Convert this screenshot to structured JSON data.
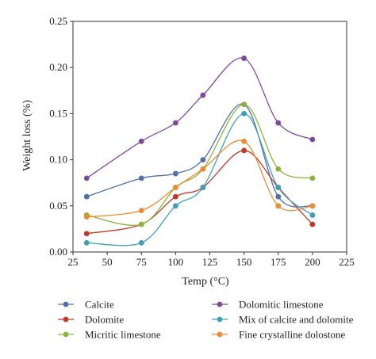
{
  "chart_data": {
    "type": "line",
    "xlabel": "Temp (°C)",
    "ylabel": "Weight loss (%)",
    "xlim": [
      25,
      225
    ],
    "ylim": [
      0,
      0.25
    ],
    "xticks": [
      25,
      50,
      75,
      100,
      125,
      150,
      175,
      200,
      225
    ],
    "yticks": [
      0.0,
      0.05,
      0.1,
      0.15,
      0.2,
      0.25
    ],
    "xtick_labels": [
      "25",
      "50",
      "75",
      "100",
      "125",
      "150",
      "175",
      "200",
      "225"
    ],
    "ytick_labels": [
      "0.00",
      "0.05",
      "0.10",
      "0.15",
      "0.20",
      "0.25"
    ],
    "grid": false,
    "legend_position": "bottom",
    "x": [
      35,
      75,
      100,
      120,
      150,
      175,
      200
    ],
    "series": [
      {
        "name": "Calcite",
        "color": "#4f6fa8",
        "values": [
          0.06,
          0.08,
          0.085,
          0.1,
          0.16,
          0.06,
          0.05
        ]
      },
      {
        "name": "Dolomitic limestone",
        "color": "#7b4a9e",
        "values": [
          0.08,
          0.12,
          0.14,
          0.17,
          0.21,
          0.14,
          0.122
        ]
      },
      {
        "name": "Dolomite",
        "color": "#c0392b",
        "values": [
          0.02,
          0.03,
          0.06,
          0.07,
          0.11,
          0.07,
          0.03
        ]
      },
      {
        "name": "Mix of calcite and dolomite",
        "color": "#3f9fb5",
        "values": [
          0.01,
          0.01,
          0.05,
          0.07,
          0.15,
          0.07,
          0.04
        ]
      },
      {
        "name": "Micritic limestone",
        "color": "#8db33a",
        "values": [
          0.04,
          0.03,
          0.07,
          0.09,
          0.16,
          0.09,
          0.08
        ]
      },
      {
        "name": "Fine crystalline dolostone",
        "color": "#ee8a2f",
        "values": [
          0.038,
          0.045,
          0.07,
          0.09,
          0.12,
          0.05,
          0.05
        ]
      }
    ]
  }
}
